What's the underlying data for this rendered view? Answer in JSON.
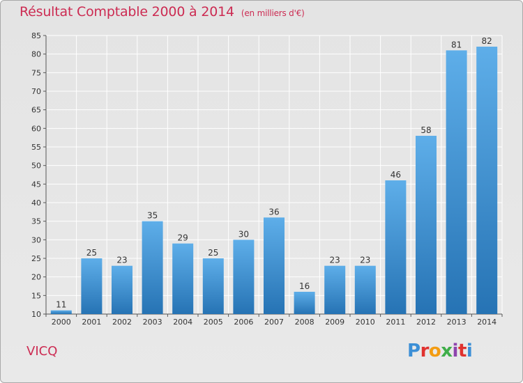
{
  "title": "Résultat Comptable 2000 à 2014",
  "subtitle": "(en milliers d'€)",
  "commune": "VICQ",
  "logo": {
    "p": "P",
    "r": "r",
    "o": "o",
    "x": "x",
    "i1": "i",
    "t": "t",
    "i2": "i"
  },
  "colors": {
    "title": "#cc2b52",
    "bar_top": "#5eaee9",
    "bar_bottom": "#2673b4"
  },
  "chart_data": {
    "type": "bar",
    "title": "Résultat Comptable 2000 à 2014",
    "subtitle": "(en milliers d'€)",
    "xlabel": "",
    "ylabel": "",
    "categories": [
      "2000",
      "2001",
      "2002",
      "2003",
      "2004",
      "2005",
      "2006",
      "2007",
      "2008",
      "2009",
      "2010",
      "2011",
      "2012",
      "2013",
      "2014"
    ],
    "values": [
      11,
      25,
      23,
      35,
      29,
      25,
      30,
      36,
      16,
      23,
      23,
      46,
      58,
      81,
      82
    ],
    "ylim": [
      10,
      85
    ],
    "yticks": [
      10,
      15,
      20,
      25,
      30,
      35,
      40,
      45,
      50,
      55,
      60,
      65,
      70,
      75,
      80,
      85
    ],
    "grid": true,
    "legend": "none"
  }
}
